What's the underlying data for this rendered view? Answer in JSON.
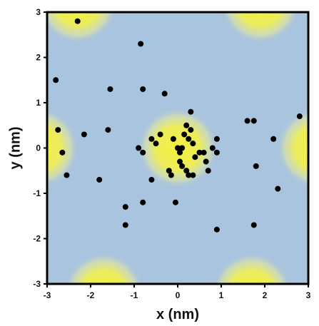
{
  "chart_data": {
    "type": "scatter",
    "title": "",
    "xlabel": "x (nm)",
    "ylabel": "y (nm)",
    "xlim": [
      -3,
      3
    ],
    "ylim": [
      -3,
      3
    ],
    "xticks": [
      "-3",
      "-2",
      "-1",
      "0",
      "1",
      "2",
      "3"
    ],
    "yticks": [
      "-3",
      "-2",
      "-1",
      "0",
      "1",
      "2",
      "3"
    ],
    "grid": false,
    "legend": "none",
    "background": {
      "description_colors": {
        "field": "#a9c4de",
        "hotspot_core": "#f2f03c",
        "hotspot_edge": "#dfe6b0"
      },
      "hotspots": [
        {
          "x": 0,
          "y": 0
        },
        {
          "x": -2.3,
          "y": 3.2
        },
        {
          "x": 1.9,
          "y": 3.2
        },
        {
          "x": -3.2,
          "y": 0
        },
        {
          "x": 3.2,
          "y": 0
        },
        {
          "x": -1.7,
          "y": -3.2
        },
        {
          "x": 1.7,
          "y": -3.2
        }
      ]
    },
    "marker_color": "#000000",
    "points": [
      {
        "x": -2.3,
        "y": 2.8
      },
      {
        "x": -0.85,
        "y": 2.3
      },
      {
        "x": -2.8,
        "y": 1.5
      },
      {
        "x": -1.55,
        "y": 1.3
      },
      {
        "x": -0.8,
        "y": 1.3
      },
      {
        "x": -0.3,
        "y": 1.2
      },
      {
        "x": -2.75,
        "y": 0.4
      },
      {
        "x": -2.65,
        "y": -0.1
      },
      {
        "x": -2.55,
        "y": -0.6
      },
      {
        "x": -2.15,
        "y": 0.3
      },
      {
        "x": -1.6,
        "y": 0.4
      },
      {
        "x": -1.8,
        "y": -0.7
      },
      {
        "x": -1.2,
        "y": -1.3
      },
      {
        "x": -1.2,
        "y": -1.7
      },
      {
        "x": -0.8,
        "y": -1.2
      },
      {
        "x": -0.9,
        "y": 0.0
      },
      {
        "x": -0.8,
        "y": -0.1
      },
      {
        "x": -0.6,
        "y": 0.2
      },
      {
        "x": -0.5,
        "y": 0.1
      },
      {
        "x": -0.4,
        "y": 0.3
      },
      {
        "x": -0.6,
        "y": -0.7
      },
      {
        "x": -0.2,
        "y": -0.5
      },
      {
        "x": -0.15,
        "y": -0.6
      },
      {
        "x": -0.1,
        "y": 0.2
      },
      {
        "x": 0.0,
        "y": 0.0
      },
      {
        "x": 0.05,
        "y": -0.1
      },
      {
        "x": 0.1,
        "y": 0.0
      },
      {
        "x": 0.15,
        "y": 0.3
      },
      {
        "x": 0.2,
        "y": 0.5
      },
      {
        "x": 0.25,
        "y": 0.2
      },
      {
        "x": 0.3,
        "y": 0.4
      },
      {
        "x": 0.35,
        "y": 0.1
      },
      {
        "x": 0.3,
        "y": 0.8
      },
      {
        "x": 0.4,
        "y": -0.2
      },
      {
        "x": 0.05,
        "y": -0.3
      },
      {
        "x": 0.1,
        "y": -0.4
      },
      {
        "x": 0.2,
        "y": -0.5
      },
      {
        "x": 0.25,
        "y": -0.6
      },
      {
        "x": 0.35,
        "y": -0.6
      },
      {
        "x": 0.5,
        "y": -0.1
      },
      {
        "x": 0.6,
        "y": -0.1
      },
      {
        "x": 0.65,
        "y": -0.3
      },
      {
        "x": 0.7,
        "y": -0.5
      },
      {
        "x": 0.8,
        "y": 0.0
      },
      {
        "x": 0.9,
        "y": -0.1
      },
      {
        "x": 0.9,
        "y": 0.2
      },
      {
        "x": -0.05,
        "y": -1.2
      },
      {
        "x": 0.9,
        "y": -1.8
      },
      {
        "x": 1.6,
        "y": 0.6
      },
      {
        "x": 1.75,
        "y": 0.6
      },
      {
        "x": 1.8,
        "y": -0.4
      },
      {
        "x": 1.75,
        "y": -1.7
      },
      {
        "x": 2.2,
        "y": 0.2
      },
      {
        "x": 2.3,
        "y": -0.9
      },
      {
        "x": 2.8,
        "y": 0.7
      }
    ]
  }
}
